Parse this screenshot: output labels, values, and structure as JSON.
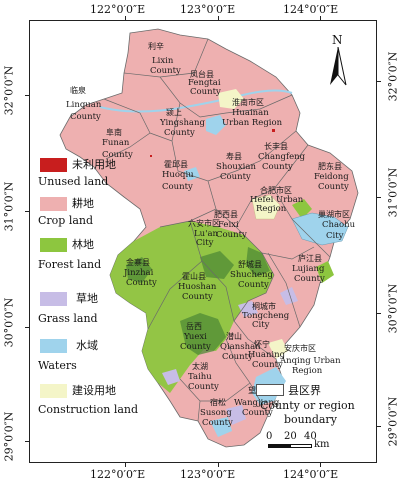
{
  "axes": {
    "top": [
      "122°0′0″E",
      "123°0′0″E",
      "124°0′0″E"
    ],
    "bottom": [
      "122°0′0″E",
      "123°0′0″E",
      "124°0′0″E"
    ],
    "left": [
      "32°0′0″N",
      "31°0′0″N",
      "30°0′0″N",
      "29°0′0″N"
    ],
    "right": [
      "32°0′0″N",
      "31°0′0″N",
      "30°0′0″N",
      "29°0′0″N"
    ]
  },
  "colors": {
    "unused": "#c81e1e",
    "crop": "#eeb0b0",
    "forest": "#8dc63f",
    "grass": "#c7bde6",
    "water": "#9fd3ec",
    "construction": "#f4f5c8",
    "forest_dark": "#4f8a36"
  },
  "legend": [
    {
      "cn": "未利用地",
      "en": "Unused land",
      "color": "#c81e1e"
    },
    {
      "cn": "耕地",
      "en": "Crop land",
      "color": "#eeb0b0"
    },
    {
      "cn": "林地",
      "en": "Forest land",
      "color": "#8dc63f"
    },
    {
      "cn": "草地",
      "en": "Grass land",
      "color": "#c7bde6"
    },
    {
      "cn": "水域",
      "en": "Waters",
      "color": "#9fd3ec"
    },
    {
      "cn": "建设用地",
      "en": "Construction land",
      "color": "#f4f5c8"
    }
  ],
  "boundary_legend": {
    "cn": "县区界",
    "en1": "County or region",
    "en2": "boundary"
  },
  "north_label": "N",
  "scale": {
    "labels": [
      "0",
      "20",
      "40"
    ],
    "unit": "km"
  },
  "counties": {
    "lixin": {
      "cn": "利辛",
      "en1": "Lixin",
      "en2": "County"
    },
    "fengtai": {
      "cn": "凤台县",
      "en1": "Fengtai",
      "en2": "County"
    },
    "linquan": {
      "cn": "临泉",
      "en1": "Linquan",
      "en2": "County"
    },
    "yingshang": {
      "cn": "颍上",
      "en1": "Yingshang",
      "en2": "County"
    },
    "huainan": {
      "cn": "淮南市区",
      "en1": "Huainan",
      "en2": "Urban Region"
    },
    "funan": {
      "cn": "阜南",
      "en1": "Funan",
      "en2": "County"
    },
    "shouxian": {
      "cn": "寿县",
      "en1": "Shouxian",
      "en2": "County"
    },
    "changfeng": {
      "cn": "长丰县",
      "en1": "Changfeng",
      "en2": "County"
    },
    "huoqiu": {
      "cn": "霍邱县",
      "en1": "Huoqiu",
      "en2": "County"
    },
    "feidong": {
      "cn": "肥东县",
      "en1": "Feidong",
      "en2": "County"
    },
    "hefei": {
      "cn": "合肥市区",
      "en1": "Hefei Urban",
      "en2": "Region"
    },
    "feixi": {
      "cn": "肥西县",
      "en1": "Feixi",
      "en2": "County"
    },
    "chaohu": {
      "cn": "巢湖市区",
      "en1": "Chaohu",
      "en2": "City"
    },
    "luan": {
      "cn": "六安市区",
      "en1": "Lu'an",
      "en2": "City"
    },
    "jinzhai": {
      "cn": "金寨县",
      "en1": "Jinzhai",
      "en2": "County"
    },
    "huoshan": {
      "cn": "霍山县",
      "en1": "Huoshan",
      "en2": "County"
    },
    "shucheng": {
      "cn": "舒城县",
      "en1": "Shucheng",
      "en2": "County"
    },
    "lujiang": {
      "cn": "庐江县",
      "en1": "Lujiang",
      "en2": "County"
    },
    "tongcheng": {
      "cn": "桐城市",
      "en1": "Tongcheng",
      "en2": "City"
    },
    "yuexi": {
      "cn": "岳西",
      "en1": "Yuexi",
      "en2": "County"
    },
    "qianshan": {
      "cn": "潜山",
      "en1": "Qianshan",
      "en2": "County"
    },
    "huaining": {
      "cn": "怀宁",
      "en1": "Huaning",
      "en2": "County"
    },
    "anqing": {
      "cn": "安庆市区",
      "en1": "Anqing Urban",
      "en2": "Region"
    },
    "taihu": {
      "cn": "太湖",
      "en1": "Taihu",
      "en2": "County"
    },
    "wangjiang": {
      "cn": "望江",
      "en1": "Wangjiang",
      "en2": "County"
    },
    "susong": {
      "cn": "宿松",
      "en1": "Susong",
      "en2": "County"
    }
  }
}
